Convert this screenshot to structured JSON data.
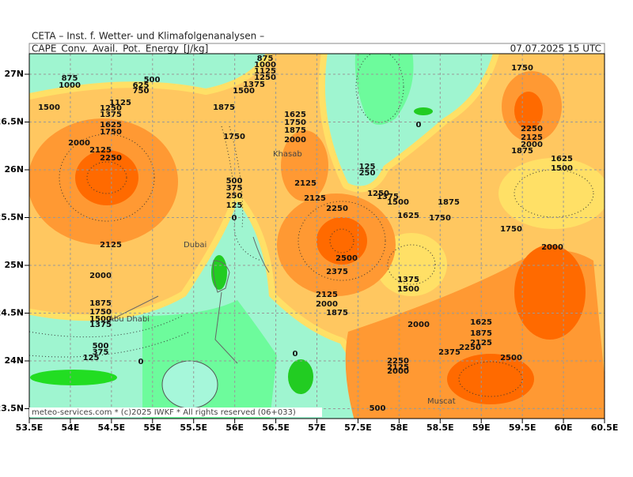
{
  "header": {
    "title": "CETA – Inst. f. Wetter- und Klimafolgenanalysen –",
    "field": "CAPE_Conv._Avail._Pot._Energy_[J/kg]",
    "valid_time": "07.07.2025 15 UTC"
  },
  "axes": {
    "lon_ticks": [
      "53.5E",
      "54E",
      "54.5E",
      "55E",
      "55.5E",
      "56E",
      "56.5E",
      "57E",
      "57.5E",
      "58E",
      "58.5E",
      "59E",
      "59.5E",
      "60E",
      "60.5E"
    ],
    "lat_ticks": [
      "27N",
      "26.5N",
      "26N",
      "25.5N",
      "25N",
      "24.5N",
      "24N",
      "23.5N"
    ]
  },
  "places": [
    "Khasab",
    "Dubai",
    "Abu Dhabi",
    "Muscat"
  ],
  "contour_labels": [
    "875",
    "1000",
    "625",
    "500",
    "750",
    "1500",
    "1125",
    "1250",
    "1375",
    "1625",
    "1750",
    "2000",
    "2125",
    "2250",
    "2125",
    "2000",
    "1875",
    "1750",
    "1500",
    "1375",
    "500",
    "375",
    "125",
    "0",
    "875",
    "1000",
    "1125",
    "1250",
    "1375",
    "1500",
    "1875",
    "1625",
    "1750",
    "1875",
    "2000",
    "1750",
    "500",
    "375",
    "250",
    "125",
    "0",
    "2125",
    "2125",
    "2250",
    "2500",
    "2375",
    "2125",
    "2000",
    "1875",
    "0",
    "125",
    "250",
    "1250",
    "1375",
    "1500",
    "0",
    "1625",
    "1750",
    "1875",
    "1375",
    "1500",
    "2000",
    "1625",
    "1875",
    "2125",
    "2250",
    "2375",
    "2500",
    "2250",
    "2125",
    "2000",
    "1750",
    "2250",
    "2125",
    "2000",
    "1875",
    "1625",
    "1500",
    "1750",
    "2000",
    "500"
  ],
  "footer": "meteo-services.com * (c)2025 IWKF * All rights reserved (06+033)"
}
